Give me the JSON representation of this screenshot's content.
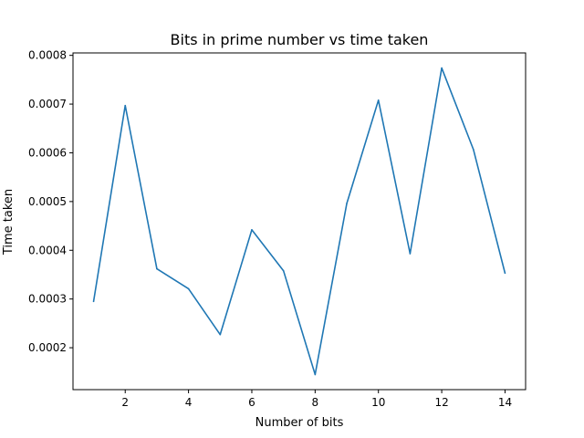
{
  "chart_data": {
    "type": "line",
    "title": "Bits in prime number vs time taken",
    "xlabel": "Number of bits",
    "ylabel": "Time taken",
    "x": [
      1,
      2,
      3,
      4,
      5,
      6,
      7,
      8,
      9,
      10,
      11,
      12,
      13,
      14
    ],
    "series": [
      {
        "color": "#1f77b4",
        "values": [
          0.000295,
          0.000697,
          0.000362,
          0.000321,
          0.000227,
          0.000442,
          0.000358,
          0.000145,
          0.000496,
          0.000708,
          0.000393,
          0.000774,
          0.000607,
          0.000353
        ]
      }
    ],
    "xlim": [
      0.35,
      14.65
    ],
    "ylim": [
      0.000114,
      0.000805
    ],
    "xticks": [
      2,
      4,
      6,
      8,
      10,
      12,
      14
    ],
    "xtick_labels": [
      "2",
      "4",
      "6",
      "8",
      "10",
      "12",
      "14"
    ],
    "yticks": [
      0.0002,
      0.0003,
      0.0004,
      0.0005,
      0.0006,
      0.0007,
      0.0008
    ],
    "ytick_labels": [
      "0.0002",
      "0.0003",
      "0.0004",
      "0.0005",
      "0.0006",
      "0.0007",
      "0.0008"
    ],
    "grid": false,
    "legend": false
  }
}
